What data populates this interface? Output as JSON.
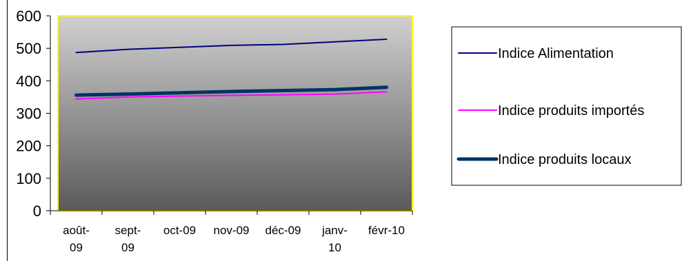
{
  "chart_data": {
    "type": "line",
    "categories": [
      [
        "août-",
        "09"
      ],
      [
        "sept-",
        "09"
      ],
      [
        "oct-09"
      ],
      [
        "nov-09"
      ],
      [
        "déc-09"
      ],
      [
        "janv-",
        "10"
      ],
      [
        "févr-10"
      ]
    ],
    "ylim": [
      0,
      600
    ],
    "yticks": [
      0,
      100,
      200,
      300,
      400,
      500,
      600
    ],
    "grid": false,
    "legend_position": "right",
    "plot_background": "gradient from light gray (top) to dark gray (bottom)",
    "plot_border_color": "#FFFF00",
    "series": [
      {
        "name": "Indice Alimentation",
        "color": "#000080",
        "line_weight": "thin",
        "values": [
          487,
          497,
          503,
          509,
          512,
          520,
          528
        ]
      },
      {
        "name": "Indice produits importés",
        "color": "#FF00FF",
        "line_weight": "thin",
        "values": [
          344,
          350,
          353,
          355,
          357,
          359,
          366
        ]
      },
      {
        "name": "Indice produits locaux",
        "color": "#003366",
        "line_weight": "thick",
        "values": [
          356,
          359,
          363,
          367,
          370,
          373,
          380
        ]
      }
    ]
  }
}
